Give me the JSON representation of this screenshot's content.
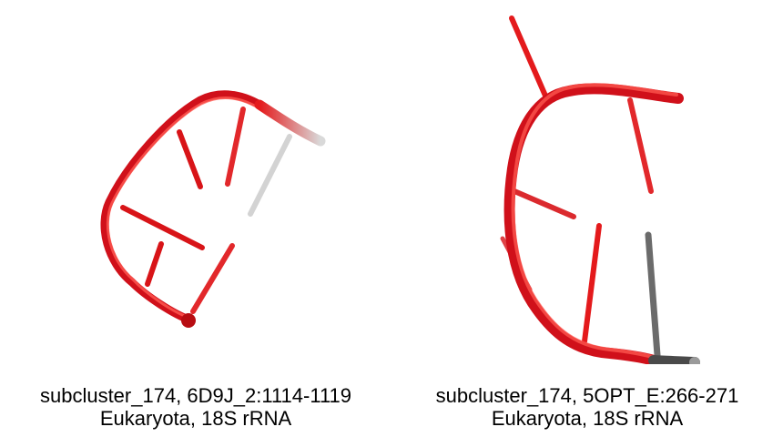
{
  "panels": [
    {
      "id": "left",
      "caption_line1": "subcluster_174, 6D9J_2:1114-1119",
      "caption_line2": "Eukaryota, 18S rRNA",
      "colors": {
        "backbone": "#e41a1c",
        "unresolved": "#d9d9d9"
      }
    },
    {
      "id": "right",
      "caption_line1": "subcluster_174, 5OPT_E:266-271",
      "caption_line2": "Eukaryota, 18S rRNA",
      "colors": {
        "backbone": "#e41a1c",
        "unresolved": "#5a5a5a"
      }
    }
  ]
}
